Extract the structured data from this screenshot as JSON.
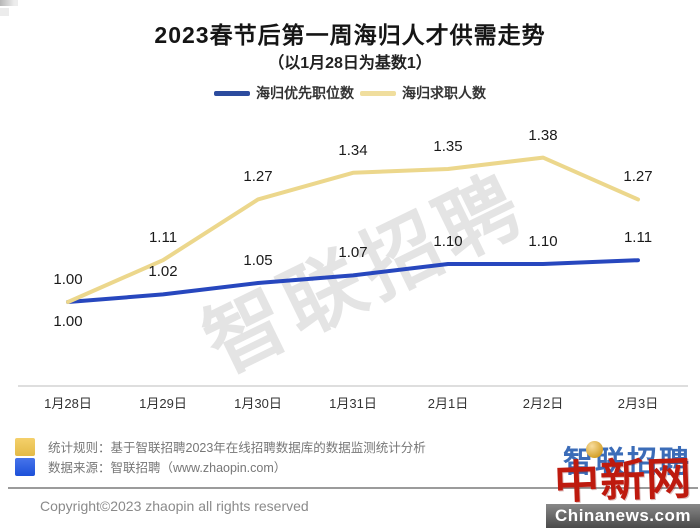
{
  "header": {
    "title": "2023春节后第一周海归人才供需走势",
    "subtitle": "（以1月28日为基数1）"
  },
  "legend": {
    "items": [
      {
        "id": "returnee-priority-jobs",
        "label": "海归优先职位数",
        "color": "#2C4B9E"
      },
      {
        "id": "returnee-job-seekers",
        "label": "海归求职人数",
        "color": "#F0DE9E"
      }
    ]
  },
  "chart_data": {
    "type": "line",
    "title": "2023春节后第一周海归人才供需走势",
    "subtitle": "（以1月28日为基数1）",
    "baseline_note": "以1月28日为基数1",
    "categories": [
      "1月28日",
      "1月29日",
      "1月30日",
      "1月31日",
      "2月1日",
      "2月2日",
      "2月3日"
    ],
    "series": [
      {
        "id": "returnee-priority-jobs",
        "name": "海归优先职位数",
        "color": "#2747BE",
        "values": [
          1.0,
          1.02,
          1.05,
          1.07,
          1.1,
          1.1,
          1.11
        ],
        "first_label_below": true
      },
      {
        "id": "returnee-job-seekers",
        "name": "海归求职人数",
        "color": "#ECD78C",
        "values": [
          1.0,
          1.11,
          1.27,
          1.34,
          1.35,
          1.38,
          1.27
        ],
        "first_label_below": false
      }
    ],
    "ylim": [
      0.95,
      1.45
    ],
    "grid": false,
    "legend_position": "top",
    "data_labels": true
  },
  "watermark": {
    "text": "智联招聘"
  },
  "footer": {
    "rules": {
      "bullet_color": "#F2C64B",
      "text": "统计规则：基于智联招聘2023年在线招聘数据库的数据监测统计分析"
    },
    "source": {
      "bullet_color": "#1E55E6",
      "text": "数据来源：智联招聘（www.zhaopin.com）"
    },
    "copyright": "Copyright©2023 zhaopin all rights reserved"
  },
  "logos": {
    "zhaopin": {
      "text": "智联招聘",
      "color": "#3B6CB8",
      "accent": "#F0B429"
    },
    "chinanews": {
      "text": "中新网",
      "color": "#BE1A0E",
      "site": "Chinanews.com",
      "banner_bg": "#6a6a6a"
    }
  }
}
